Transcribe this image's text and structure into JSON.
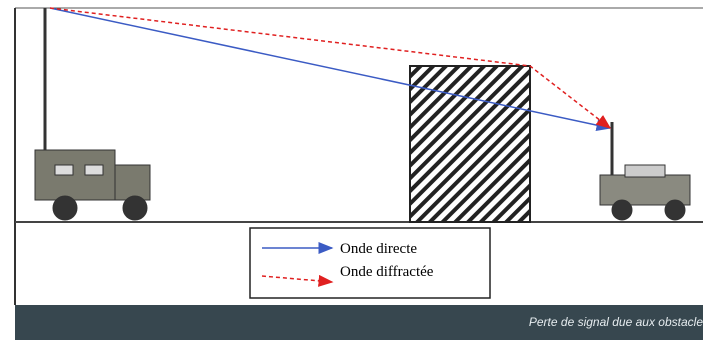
{
  "legend": {
    "items": [
      {
        "label": "Onde directe"
      },
      {
        "label": "Onde diffractée"
      }
    ]
  },
  "caption": "Perte de signal due aux obstacle"
}
